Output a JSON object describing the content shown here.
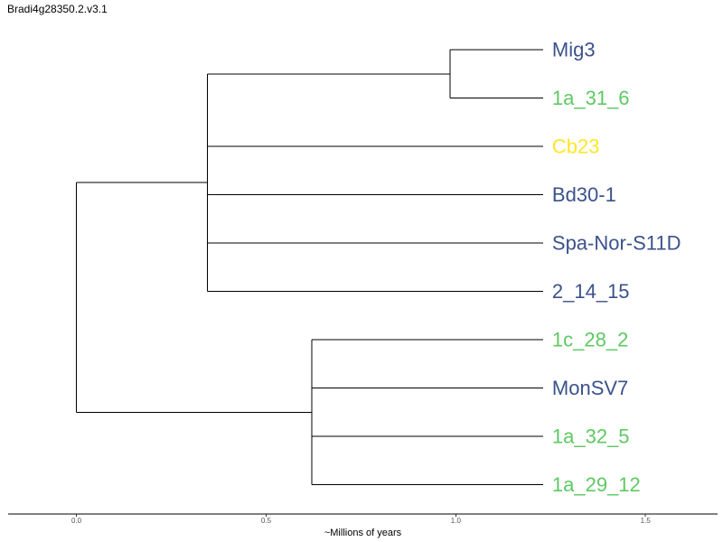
{
  "chart_data": {
    "type": "phylogenetic-tree",
    "title": "Bradi4g28350.2.v3.1",
    "xlabel": "~Millions of years",
    "xlim": [
      -0.18,
      1.69
    ],
    "xticks": [
      0.0,
      0.5,
      1.0,
      1.5
    ],
    "xtick_labels": [
      "0.0",
      "0.5",
      "1.0",
      "1.5"
    ],
    "grid": false,
    "tips": [
      {
        "label": "Mig3",
        "x": 1.23,
        "color": "#3b528b"
      },
      {
        "label": "1a_31_6",
        "x": 1.23,
        "color": "#5ec962"
      },
      {
        "label": "Cb23",
        "x": 1.23,
        "color": "#fde725"
      },
      {
        "label": "Bd30-1",
        "x": 1.23,
        "color": "#3b528b"
      },
      {
        "label": "Spa-Nor-S11D",
        "x": 1.23,
        "color": "#3b528b"
      },
      {
        "label": "2_14_15",
        "x": 1.23,
        "color": "#3b528b"
      },
      {
        "label": "1c_28_2",
        "x": 1.23,
        "color": "#5ec962"
      },
      {
        "label": "MonSV7",
        "x": 1.23,
        "color": "#3b528b"
      },
      {
        "label": "1a_32_5",
        "x": 1.23,
        "color": "#5ec962"
      },
      {
        "label": "1a_29_12",
        "x": 1.23,
        "color": "#5ec962"
      }
    ],
    "internal_nodes": [
      {
        "id": "root",
        "x": 0.0,
        "children": [
          "A",
          "B"
        ]
      },
      {
        "id": "A",
        "x": 0.345,
        "children": [
          "C",
          2,
          3,
          4,
          5
        ]
      },
      {
        "id": "C",
        "x": 0.985,
        "children": [
          0,
          1
        ]
      },
      {
        "id": "B",
        "x": 0.62,
        "children": [
          6,
          7,
          8,
          9
        ]
      }
    ]
  }
}
